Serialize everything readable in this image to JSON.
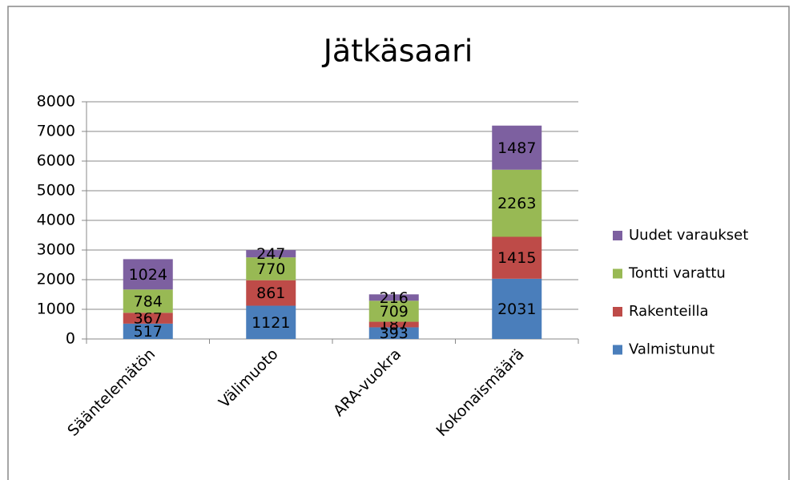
{
  "chart_data": {
    "type": "stacked_bar",
    "title": "Jätkäsaari",
    "categories": [
      "Sääntelemätön",
      "Välimuoto",
      "ARA-vuokra",
      "Kokonaismäärä"
    ],
    "series": [
      {
        "name": "Valmistunut",
        "color": "#4a7ebb",
        "values": [
          517,
          1121,
          393,
          2031
        ]
      },
      {
        "name": "Rakenteilla",
        "color": "#be4b48",
        "values": [
          367,
          861,
          187,
          1415
        ]
      },
      {
        "name": "Tontti varattu",
        "color": "#98b954",
        "values": [
          784,
          770,
          709,
          2263
        ]
      },
      {
        "name": "Uudet varaukset",
        "color": "#7d60a0",
        "values": [
          1024,
          247,
          216,
          1487
        ]
      }
    ],
    "ylim": [
      0,
      8000
    ],
    "yticks": [
      0,
      1000,
      2000,
      3000,
      4000,
      5000,
      6000,
      7000,
      8000
    ],
    "grid": true,
    "legend": "right"
  }
}
